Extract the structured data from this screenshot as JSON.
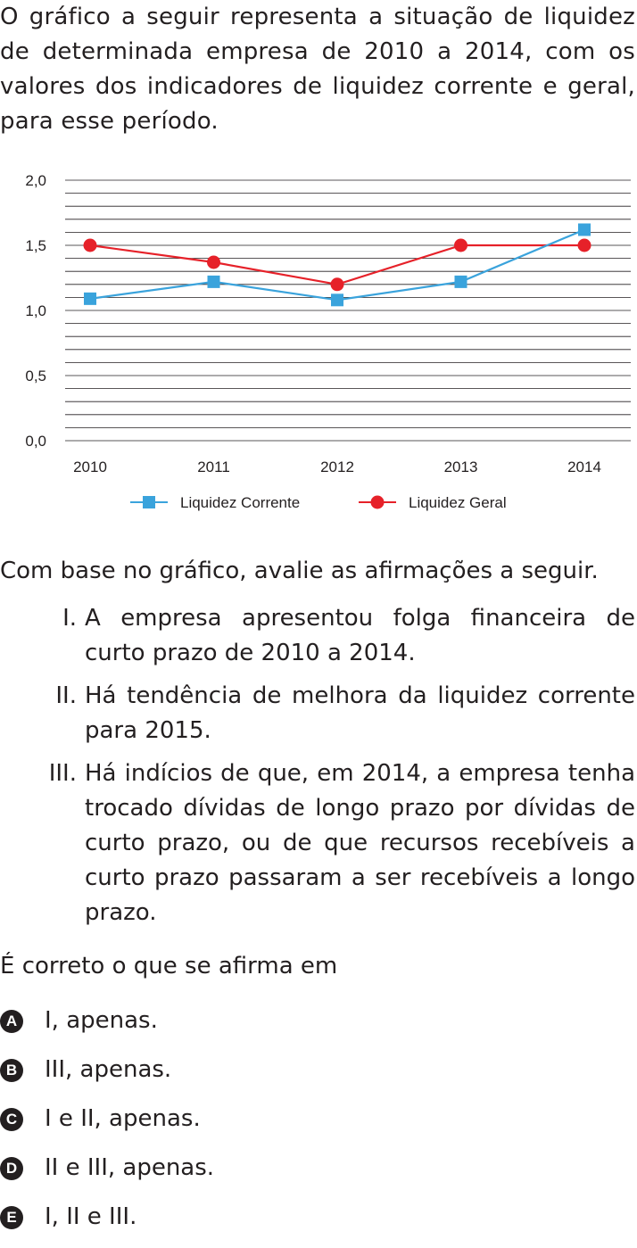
{
  "intro": "O gráfico a seguir representa a situação de liquidez de determinada empresa de 2010 a 2014, com os valores dos indicadores de liquidez corrente e geral, para esse período.",
  "chart_data": {
    "type": "line",
    "x": [
      "2010",
      "2011",
      "2012",
      "2013",
      "2014"
    ],
    "ylim": [
      0,
      2.0
    ],
    "yticks": [
      "0,0",
      "0,5",
      "1,0",
      "1,5",
      "2,0"
    ],
    "grid": true,
    "legend_position": "bottom",
    "series": [
      {
        "name": "Liquidez Corrente",
        "values": [
          1.09,
          1.22,
          1.08,
          1.22,
          1.62
        ],
        "color": "#3aa3dc",
        "marker": "square"
      },
      {
        "name": "Liquidez Geral",
        "values": [
          1.5,
          1.37,
          1.2,
          1.5,
          1.5
        ],
        "color": "#e62129",
        "marker": "circle"
      }
    ]
  },
  "prompt": "Com base no gráfico, avalie as afirmações a seguir.",
  "statements": [
    {
      "num": "I.",
      "text": "A empresa apresentou folga financeira de curto prazo de 2010 a 2014."
    },
    {
      "num": "II.",
      "text": "Há tendência de melhora da liquidez corrente para 2015."
    },
    {
      "num": "III.",
      "text": "Há indícios de que, em 2014, a empresa tenha trocado dívidas de longo prazo por dívidas de curto prazo, ou de que recursos recebíveis a curto prazo passaram a ser recebíveis a longo prazo."
    }
  ],
  "question": "É correto o que se afirma em",
  "options": [
    {
      "letter": "A",
      "text": "I, apenas."
    },
    {
      "letter": "B",
      "text": "III, apenas."
    },
    {
      "letter": "C",
      "text": "I e II, apenas."
    },
    {
      "letter": "D",
      "text": "II e III, apenas."
    },
    {
      "letter": "E",
      "text": "I, II e III."
    }
  ]
}
